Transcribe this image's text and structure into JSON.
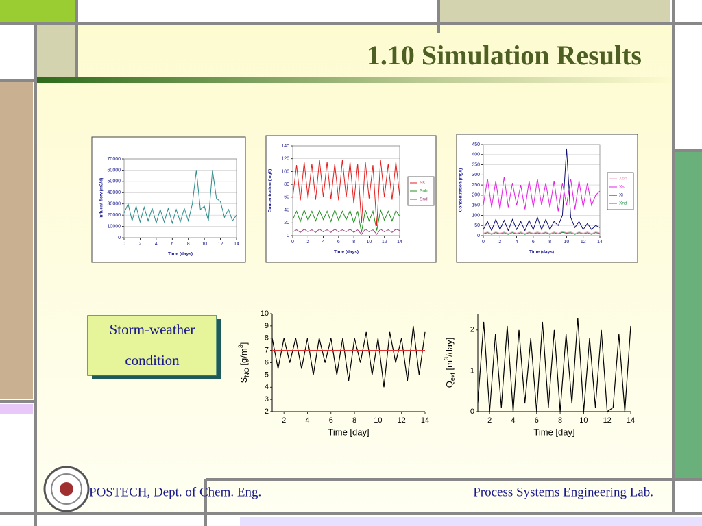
{
  "slide": {
    "title": "1.10 Simulation Results",
    "box_lines": [
      "Storm-weather",
      "condition"
    ],
    "footer_left": "POSTECH, Dept. of Chem. Eng.",
    "footer_right": "Process Systems Engineering Lab."
  },
  "chart_data": [
    {
      "type": "line",
      "xlabel": "Time (days)",
      "ylabel": "Influent flow (m3/d)",
      "x": [
        0,
        0.5,
        1,
        1.5,
        2,
        2.5,
        3,
        3.5,
        4,
        4.5,
        5,
        5.5,
        6,
        6.5,
        7,
        7.5,
        8,
        8.5,
        9,
        9.5,
        10,
        10.5,
        11,
        11.5,
        12,
        12.5,
        13,
        13.5,
        14
      ],
      "series": [
        {
          "color": "#2e8b8b",
          "values": [
            22000,
            30000,
            15000,
            28000,
            14000,
            27000,
            15000,
            26000,
            13000,
            25000,
            14000,
            26000,
            13000,
            25000,
            14000,
            26000,
            15000,
            30000,
            60000,
            25000,
            28000,
            15000,
            60000,
            35000,
            32000,
            18000,
            25000,
            15000,
            20000
          ]
        }
      ],
      "xlim": [
        0,
        14
      ],
      "xticks": [
        0,
        2,
        4,
        6,
        8,
        10,
        12,
        14
      ],
      "ylim": [
        0,
        70000
      ],
      "yticks": [
        0,
        10000,
        20000,
        30000,
        40000,
        50000,
        60000,
        70000
      ],
      "grid": true
    },
    {
      "type": "line",
      "xlabel": "Time (days)",
      "ylabel": "Concentration (mg/l)",
      "x": [
        0,
        0.5,
        1,
        1.5,
        2,
        2.5,
        3,
        3.5,
        4,
        4.5,
        5,
        5.5,
        6,
        6.5,
        7,
        7.5,
        8,
        8.5,
        9,
        9.5,
        10,
        10.5,
        11,
        11.5,
        12,
        12.5,
        13,
        13.5,
        14
      ],
      "series": [
        {
          "name": "Ss",
          "color": "#e02020",
          "values": [
            60,
            110,
            55,
            115,
            58,
            112,
            56,
            118,
            60,
            115,
            57,
            112,
            55,
            118,
            60,
            115,
            50,
            112,
            20,
            115,
            58,
            110,
            15,
            118,
            60,
            112,
            56,
            115,
            62
          ]
        },
        {
          "name": "Snh",
          "color": "#209020",
          "values": [
            25,
            38,
            22,
            40,
            24,
            38,
            23,
            39,
            25,
            38,
            22,
            40,
            24,
            38,
            25,
            39,
            20,
            38,
            5,
            40,
            23,
            38,
            8,
            40,
            24,
            38,
            23,
            39,
            30
          ]
        },
        {
          "name": "Snd",
          "color": "#a04080",
          "values": [
            6,
            9,
            5,
            10,
            6,
            9,
            5,
            10,
            6,
            9,
            5,
            10,
            6,
            9,
            6,
            10,
            5,
            9,
            2,
            10,
            6,
            9,
            2,
            10,
            6,
            9,
            5,
            10,
            8
          ]
        }
      ],
      "xlim": [
        0,
        14
      ],
      "xticks": [
        0,
        2,
        4,
        6,
        8,
        10,
        12,
        14
      ],
      "ylim": [
        0,
        140
      ],
      "yticks": [
        0,
        20,
        40,
        60,
        80,
        100,
        120,
        140
      ],
      "grid": true,
      "legend": "right"
    },
    {
      "type": "line",
      "xlabel": "Time (days)",
      "ylabel": "Concentration (mg/l)",
      "x": [
        0,
        0.5,
        1,
        1.5,
        2,
        2.5,
        3,
        3.5,
        4,
        4.5,
        5,
        5.5,
        6,
        6.5,
        7,
        7.5,
        8,
        8.5,
        9,
        9.5,
        10,
        10.5,
        11,
        11.5,
        12,
        12.5,
        13,
        13.5,
        14
      ],
      "series": [
        {
          "name": "Xbh",
          "color": "#f0a0c0",
          "values": [
            12,
            18,
            10,
            18,
            12,
            18,
            10,
            18,
            12,
            18,
            10,
            18,
            12,
            18,
            12,
            18,
            10,
            18,
            12,
            20,
            15,
            18,
            10,
            18,
            12,
            18,
            10,
            18,
            14
          ]
        },
        {
          "name": "Xs",
          "color": "#e020e0",
          "values": [
            150,
            280,
            140,
            270,
            130,
            290,
            140,
            260,
            150,
            250,
            130,
            270,
            140,
            280,
            150,
            260,
            140,
            270,
            120,
            260,
            150,
            280,
            130,
            270,
            140,
            260,
            150,
            200,
            220
          ]
        },
        {
          "name": "Xi",
          "color": "#101070",
          "values": [
            30,
            70,
            25,
            80,
            30,
            75,
            25,
            80,
            30,
            70,
            25,
            75,
            30,
            90,
            30,
            80,
            30,
            70,
            50,
            100,
            430,
            90,
            40,
            70,
            30,
            60,
            30,
            50,
            40
          ]
        },
        {
          "name": "Xnd",
          "color": "#209040",
          "values": [
            8,
            15,
            6,
            15,
            8,
            14,
            6,
            15,
            8,
            14,
            6,
            15,
            8,
            14,
            8,
            15,
            6,
            14,
            8,
            16,
            12,
            14,
            6,
            15,
            8,
            14,
            6,
            15,
            10
          ]
        }
      ],
      "xlim": [
        0,
        14
      ],
      "xticks": [
        0,
        2,
        4,
        6,
        8,
        10,
        12,
        14
      ],
      "ylim": [
        0,
        450
      ],
      "yticks": [
        0,
        50,
        100,
        150,
        200,
        250,
        300,
        350,
        400,
        450
      ],
      "grid": true,
      "legend": "right"
    },
    {
      "type": "line",
      "xlabel": "Time [day]",
      "ylabel_parts": [
        "S",
        "NO",
        " [g/m",
        "3",
        "]"
      ],
      "series": [
        {
          "color": "#000000",
          "x": [
            1,
            1.5,
            2,
            2.5,
            3,
            3.5,
            4,
            4.5,
            5,
            5.5,
            6,
            6.5,
            7,
            7.5,
            8,
            8.5,
            9,
            9.5,
            10,
            10.5,
            11,
            11.5,
            12,
            12.5,
            13,
            13.5,
            14
          ],
          "values": [
            8,
            5.5,
            8,
            6,
            8,
            5.5,
            8,
            5,
            8,
            6,
            8,
            5,
            8,
            4.5,
            8,
            6,
            8.5,
            5,
            8,
            4,
            8.5,
            6,
            8,
            4.5,
            9,
            5,
            8.5
          ]
        },
        {
          "color": "#e03030",
          "x": [
            1,
            14
          ],
          "values": [
            7,
            7
          ]
        }
      ],
      "xlim": [
        1,
        14
      ],
      "xticks": [
        2,
        4,
        6,
        8,
        10,
        12,
        14
      ],
      "ylim": [
        2,
        10
      ],
      "yticks": [
        2,
        3,
        4,
        5,
        6,
        7,
        8,
        9,
        10
      ],
      "grid": false
    },
    {
      "type": "line",
      "xlabel": "Time [day]",
      "ylabel_parts": [
        "Q",
        "ext",
        " [m",
        "3",
        "/day]"
      ],
      "series": [
        {
          "color": "#000000",
          "x": [
            1,
            1.5,
            2,
            2.5,
            3,
            3.5,
            4,
            4.5,
            5,
            5.5,
            6,
            6.5,
            7,
            7.5,
            8,
            8.5,
            9,
            9.5,
            10,
            10.5,
            11,
            11.5,
            12,
            12.5,
            13,
            13.5,
            14
          ],
          "values": [
            0.2,
            2.2,
            0,
            1.9,
            0.1,
            2.1,
            0,
            2,
            0.2,
            1.8,
            0,
            2.2,
            0.1,
            2,
            0,
            1.9,
            0.2,
            2.3,
            0,
            1.8,
            0.1,
            2,
            0,
            0.1,
            1.9,
            0,
            2.1
          ]
        }
      ],
      "xlim": [
        1,
        14
      ],
      "xticks": [
        2,
        4,
        6,
        8,
        10,
        12,
        14
      ],
      "ylim": [
        0,
        2.4
      ],
      "yticks": [
        0,
        1,
        2
      ],
      "grid": false
    }
  ]
}
